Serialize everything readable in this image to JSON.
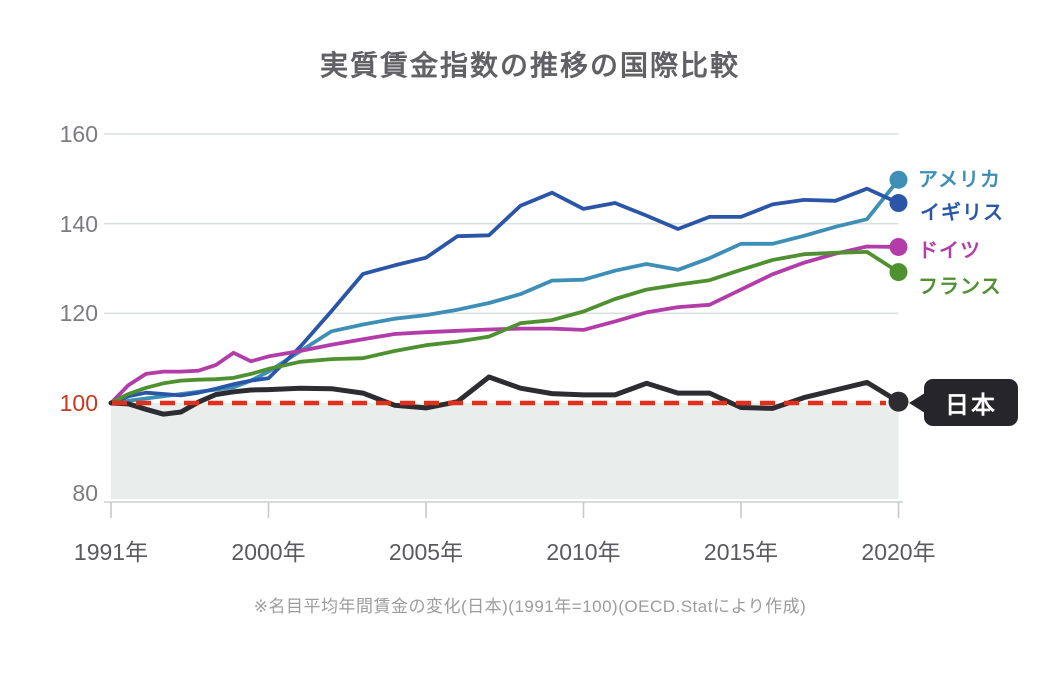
{
  "title": "実質賃金指数の推移の国際比較",
  "footnote": "※名目平均年間賃金の変化(日本)(1991年=100)(OECD.Statにより作成)",
  "y_axis": {
    "tick_values": [
      160,
      140,
      120,
      100,
      80
    ],
    "baseline_value": 100,
    "label_color": "#7c7c80",
    "baseline_label_color": "#c63a1e"
  },
  "x_axis": {
    "tick_labels": [
      "1991年",
      "2000年",
      "2005年",
      "2010年",
      "2015年",
      "2020年"
    ],
    "anchor_years": [
      1991,
      2000,
      2005,
      2010,
      2015,
      2020
    ],
    "label_color": "#5a5a5e"
  },
  "chart_data": {
    "type": "line",
    "title": "実質賃金指数の推移の国際比較",
    "note": "1991年=100",
    "grid": "horizontal",
    "ylim": [
      80,
      165
    ],
    "x_years": [
      1991,
      1992,
      1993,
      1994,
      1995,
      1996,
      1997,
      1998,
      1999,
      2000,
      2001,
      2002,
      2003,
      2004,
      2005,
      2006,
      2007,
      2008,
      2009,
      2010,
      2011,
      2012,
      2013,
      2014,
      2015,
      2016,
      2017,
      2018,
      2019,
      2020
    ],
    "series": [
      {
        "name": "アメリカ",
        "color": "#3e8fb5",
        "values": [
          100,
          100.5,
          101,
          101.5,
          102,
          102.5,
          103,
          103.5,
          105,
          107,
          111.5,
          116,
          117.5,
          118.8,
          119.6,
          120.8,
          122.3,
          124.3,
          127.3,
          127.5,
          129.5,
          131,
          129.7,
          132.3,
          135.5,
          135.5,
          137.3,
          139.3,
          141,
          149.8
        ]
      },
      {
        "name": "イギリス",
        "color": "#2b56a7",
        "values": [
          100,
          101.5,
          102.3,
          102,
          101.7,
          102.3,
          103.2,
          104.2,
          105,
          105.5,
          112.5,
          120.5,
          128.8,
          130.7,
          132.4,
          137.2,
          137.4,
          144,
          146.9,
          143.3,
          144.6,
          141.8,
          138.8,
          141.5,
          141.5,
          144.3,
          145.3,
          145.1,
          147.8,
          144.6
        ]
      },
      {
        "name": "ドイツ",
        "color": "#b23da8",
        "values": [
          100,
          104,
          106.5,
          107,
          107,
          107.2,
          108.5,
          111.2,
          109.3,
          110.4,
          111.6,
          113,
          114.2,
          115.4,
          115.8,
          116.1,
          116.4,
          116.6,
          116.6,
          116.3,
          118.2,
          120.2,
          121.4,
          121.9,
          125.3,
          128.7,
          131.3,
          133.3,
          134.9,
          134.8
        ]
      },
      {
        "name": "フランス",
        "color": "#4f9130",
        "values": [
          100,
          102,
          103.4,
          104.4,
          105,
          105.2,
          105.3,
          105.6,
          106.5,
          107.6,
          109.2,
          109.8,
          110,
          111.6,
          112.9,
          113.7,
          114.8,
          117.8,
          118.5,
          120.4,
          123.2,
          125.3,
          126.4,
          127.4,
          129.7,
          131.9,
          133.2,
          133.5,
          133.7,
          129.2
        ]
      },
      {
        "name": "日本",
        "color": "#2d2d31",
        "values": [
          100,
          99.8,
          98.6,
          97.5,
          98,
          100.2,
          101.9,
          102.5,
          102.9,
          103,
          103.3,
          103.2,
          102.2,
          99.5,
          98.9,
          100.3,
          105.8,
          103.3,
          102.1,
          101.8,
          101.8,
          104.4,
          102.2,
          102.2,
          99,
          98.8,
          101.2,
          102.9,
          104.6,
          100.3
        ]
      }
    ],
    "baseline": {
      "value": 100,
      "style": "dashed",
      "color": "#e02f1a"
    },
    "below_baseline_fill": "#e9edec",
    "legend_position": "right"
  },
  "legend": {
    "items": [
      {
        "label": "アメリカ",
        "key": "usa"
      },
      {
        "label": "イギリス",
        "key": "uk"
      },
      {
        "label": "ドイツ",
        "key": "germany"
      },
      {
        "label": "フランス",
        "key": "france"
      }
    ]
  },
  "japan_badge": {
    "label": "日本",
    "bg_color": "#26262a",
    "text_color": "#ffffff"
  }
}
